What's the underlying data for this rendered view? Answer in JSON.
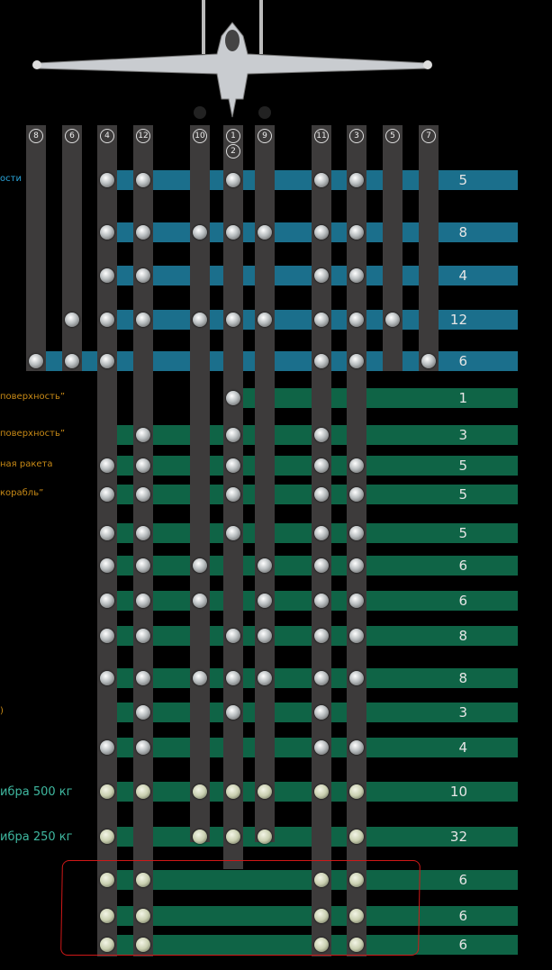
{
  "stations": [
    "8",
    "6",
    "4",
    "12",
    "10",
    "1",
    "9",
    "11",
    "3",
    "5",
    "7"
  ],
  "station_center_label": [
    "1",
    "2"
  ],
  "left_labels": [
    {
      "text": "ости",
      "color": "#2aa3d8",
      "row": 0
    },
    {
      "text": "поверхность”",
      "color": "#c88a16",
      "row": 5
    },
    {
      "text": "поверхность”",
      "color": "#c88a16",
      "row": 6
    },
    {
      "text": "ная ракета",
      "color": "#c88a16",
      "row": 7
    },
    {
      "text": "корабль”",
      "color": "#c88a16",
      "row": 8
    },
    {
      "text": ")",
      "color": "#c88a16",
      "row": 14
    },
    {
      "text": "ибра 500 кг",
      "color": "#3fb8a0",
      "row": 16
    },
    {
      "text": "ибра 250 кг",
      "color": "#3fb8a0",
      "row": 17
    }
  ],
  "rows": [
    {
      "count": "5",
      "color": "blue",
      "stations": [
        "4",
        "12",
        "1",
        "11",
        "3"
      ]
    },
    {
      "count": "8",
      "color": "blue",
      "stations": [
        "4",
        "12",
        "10",
        "1",
        "9",
        "11",
        "3"
      ]
    },
    {
      "count": "4",
      "color": "blue",
      "stations": [
        "4",
        "12",
        "11",
        "3"
      ]
    },
    {
      "count": "12",
      "color": "blue",
      "stations": [
        "6",
        "4",
        "12",
        "10",
        "1",
        "9",
        "11",
        "3",
        "5"
      ]
    },
    {
      "count": "6",
      "color": "blue",
      "stations": [
        "8",
        "6",
        "4",
        "11",
        "3",
        "7"
      ]
    },
    {
      "count": "1",
      "color": "green",
      "stations": [
        "1"
      ]
    },
    {
      "count": "3",
      "color": "green",
      "stations": [
        "12",
        "1",
        "11"
      ]
    },
    {
      "count": "5",
      "color": "green",
      "stations": [
        "4",
        "12",
        "1",
        "11",
        "3"
      ]
    },
    {
      "count": "5",
      "color": "green",
      "stations": [
        "4",
        "12",
        "1",
        "11",
        "3"
      ]
    },
    {
      "count": "5",
      "color": "green",
      "stations": [
        "4",
        "12",
        "1",
        "11",
        "3"
      ]
    },
    {
      "count": "6",
      "color": "green",
      "stations": [
        "4",
        "12",
        "10",
        "9",
        "11",
        "3"
      ]
    },
    {
      "count": "6",
      "color": "green",
      "stations": [
        "4",
        "12",
        "10",
        "9",
        "11",
        "3"
      ]
    },
    {
      "count": "8",
      "color": "green",
      "stations": [
        "4",
        "12",
        "1",
        "9",
        "11",
        "3"
      ]
    },
    {
      "count": "8",
      "color": "green",
      "stations": [
        "4",
        "12",
        "10",
        "1",
        "9",
        "11",
        "3"
      ]
    },
    {
      "count": "3",
      "color": "green",
      "stations": [
        "12",
        "1",
        "11"
      ]
    },
    {
      "count": "4",
      "color": "green",
      "stations": [
        "4",
        "12",
        "11",
        "3"
      ]
    },
    {
      "count": "10",
      "color": "green",
      "stations": [
        "4",
        "12",
        "10",
        "1",
        "9",
        "11",
        "3"
      ]
    },
    {
      "count": "32",
      "color": "green",
      "stations": [
        "4",
        "10",
        "1",
        "9",
        "3"
      ]
    },
    {
      "count": "6",
      "color": "green",
      "stations": [
        "4",
        "12",
        "11",
        "3"
      ]
    },
    {
      "count": "6",
      "color": "green",
      "stations": [
        "4",
        "12",
        "11",
        "3"
      ]
    },
    {
      "count": "6",
      "color": "green",
      "stations": [
        "4",
        "12",
        "11",
        "3"
      ]
    }
  ],
  "colors": {
    "blue": "#1b6f8c",
    "green": "#0f6446",
    "highlight": "#d01818"
  }
}
